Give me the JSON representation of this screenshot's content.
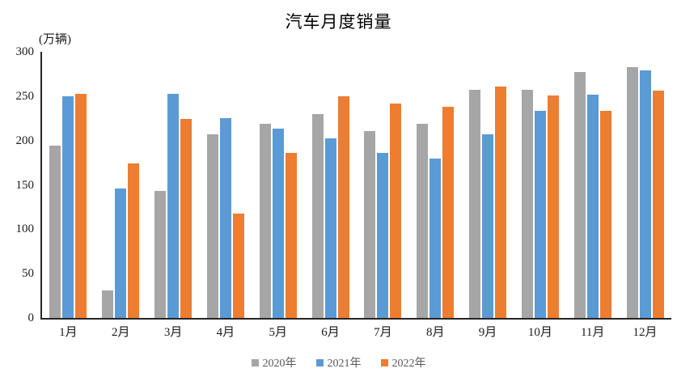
{
  "chart_data": {
    "type": "bar",
    "title": "汽车月度销量",
    "unit_label": "(万辆)",
    "categories": [
      "1月",
      "2月",
      "3月",
      "4月",
      "5月",
      "6月",
      "7月",
      "8月",
      "9月",
      "10月",
      "11月",
      "12月"
    ],
    "series": [
      {
        "name": "2020年",
        "color": "#a6a6a6",
        "values": [
          194,
          31,
          143,
          207,
          219,
          230,
          211,
          219,
          257,
          257,
          277,
          283
        ]
      },
      {
        "name": "2021年",
        "color": "#5b9bd5",
        "values": [
          250,
          146,
          253,
          225,
          213,
          202,
          186,
          180,
          207,
          233,
          252,
          279
        ]
      },
      {
        "name": "2022年",
        "color": "#ed7d31",
        "values": [
          253,
          174,
          224,
          118,
          186,
          250,
          242,
          238,
          261,
          251,
          233,
          256
        ]
      }
    ],
    "ylim": [
      0,
      300
    ],
    "ytick_step": 50,
    "xlabel": "",
    "ylabel": "",
    "grid": false,
    "legend_position": "bottom",
    "axis_color": "#262626"
  }
}
